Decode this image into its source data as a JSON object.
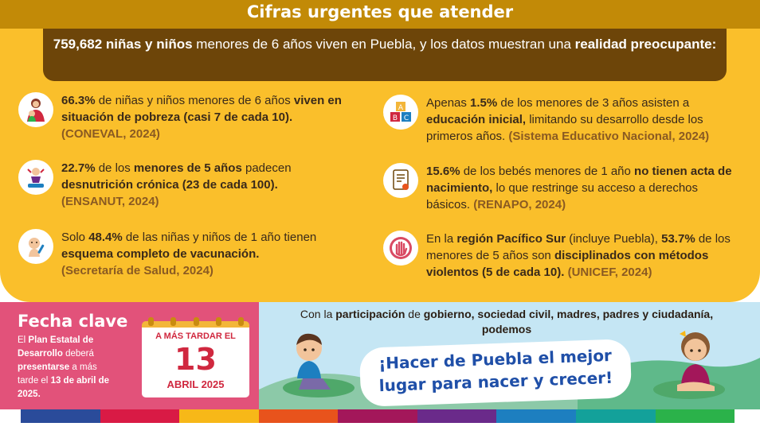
{
  "header": {
    "title": "Cifras urgentes que atender"
  },
  "intro": {
    "part1_bold": "759,682 niñas y niños",
    "part2": " menores de 6 años viven en Puebla, y los datos muestran una ",
    "part3_bold": "realidad preocupante:"
  },
  "facts": [
    {
      "icon": "mother-child-icon",
      "segments": [
        {
          "t": "66.3%",
          "b": true
        },
        {
          "t": "  de niñas y niños menores de 6 años ",
          "b": false
        },
        {
          "t": "viven en situación de pobreza (casi 7 de cada 10).",
          "b": true
        }
      ],
      "source": "(CONEVAL, 2024)"
    },
    {
      "icon": "baby-scale-icon",
      "segments": [
        {
          "t": "22.7%",
          "b": true
        },
        {
          "t": " de los ",
          "b": false
        },
        {
          "t": "menores de 5 años",
          "b": true
        },
        {
          "t": " padecen ",
          "b": false
        },
        {
          "t": "desnutrición crónica (23 de cada 100).",
          "b": true
        }
      ],
      "source": "(ENSANUT, 2024)"
    },
    {
      "icon": "vaccine-baby-icon",
      "segments": [
        {
          "t": "Solo ",
          "b": false
        },
        {
          "t": "48.4%",
          "b": true
        },
        {
          "t": " de las niñas y niños de 1 año  tienen ",
          "b": false
        },
        {
          "t": "esquema completo de vacunación.",
          "b": true
        }
      ],
      "source": "(Secretaría de Salud, 2024)"
    },
    {
      "icon": "abc-blocks-icon",
      "segments": [
        {
          "t": "Apenas ",
          "b": false
        },
        {
          "t": "1.5%",
          "b": true
        },
        {
          "t": "  de los menores de 3 años asisten a ",
          "b": false
        },
        {
          "t": "educación inicial,",
          "b": true
        },
        {
          "t": " limitando su desarrollo desde los primeros años.",
          "b": false
        }
      ],
      "source": "(Sistema Educativo Nacional, 2024)"
    },
    {
      "icon": "certificate-icon",
      "segments": [
        {
          "t": "15.6%",
          "b": true
        },
        {
          "t": " de los bebés menores de 1 año ",
          "b": false
        },
        {
          "t": "no tienen acta de nacimiento,",
          "b": true
        },
        {
          "t": "  lo que restringe su acceso a derechos básicos.",
          "b": false
        }
      ],
      "source": "(RENAPO, 2024)"
    },
    {
      "icon": "stop-hand-icon",
      "segments": [
        {
          "t": "En la ",
          "b": false
        },
        {
          "t": "región Pacífico Sur",
          "b": true
        },
        {
          "t": " (incluye Puebla), ",
          "b": false
        },
        {
          "t": "53.7%",
          "b": true
        },
        {
          "t": "  de los menores de 5 años son ",
          "b": false
        },
        {
          "t": "disciplinados con métodos violentos (5 de cada 10).",
          "b": true
        }
      ],
      "source": "(UNICEF, 2024)"
    }
  ],
  "key_date": {
    "title": "Fecha clave",
    "segments": [
      {
        "t": "El ",
        "b": false
      },
      {
        "t": "Plan Estatal de Desarrollo",
        "b": true
      },
      {
        "t": " deberá ",
        "b": false
      },
      {
        "t": "presentarse",
        "b": true
      },
      {
        "t": " a más tarde el ",
        "b": false
      },
      {
        "t": "13 de abril de 2025.",
        "b": true
      }
    ],
    "calendar": {
      "header": "A MÁS TARDAR EL",
      "day": "13",
      "month": "ABRIL 2025"
    }
  },
  "participation": {
    "segments": [
      {
        "t": "Con la ",
        "b": false
      },
      {
        "t": "participación",
        "b": true
      },
      {
        "t": " de ",
        "b": false
      },
      {
        "t": "gobierno, sociedad civil, madres, padres y ciudadanía, podemos",
        "b": true
      }
    ],
    "slogan": "¡Hacer de Puebla el mejor lugar para nacer y crecer!"
  },
  "colors": {
    "banner": "#c28a07",
    "panel": "#fabf2b",
    "intro_bg": "#6d4509",
    "keydate_bg": "#e2527a",
    "blue_bg": "#c5e6f4",
    "slogan": "#1f4fa8",
    "strip": [
      "#2a4b9a",
      "#d91a45",
      "#f7b818",
      "#e8531c",
      "#a3175a",
      "#6a2a8a",
      "#1d7fc0",
      "#13a19a",
      "#2bb24a"
    ]
  }
}
